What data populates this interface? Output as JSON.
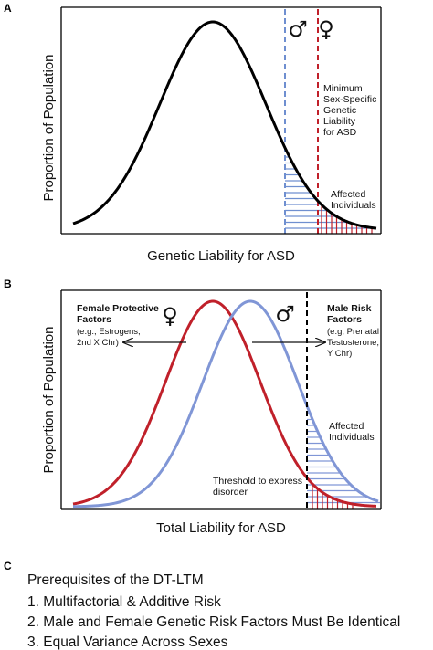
{
  "panel_a": {
    "letter": "A",
    "ylabel": "Proportion of Population",
    "xlabel": "Genetic Liability for ASD",
    "male_symbol": "♂",
    "female_symbol": "♀",
    "threshold_label": [
      "Minimum",
      "Sex-Specific",
      "Genetic",
      "Liability",
      "for ASD"
    ],
    "affected_label": [
      "Affected",
      "Individuals"
    ],
    "colors": {
      "curve": "#000000",
      "male": "#6f8fd0",
      "female": "#c0202a"
    }
  },
  "panel_b": {
    "letter": "B",
    "ylabel": "Proportion of Population",
    "xlabel": "Total Liability for ASD",
    "female_symbol": "♀",
    "male_symbol": "♂",
    "female_factors_title": [
      "Female Protective",
      "Factors"
    ],
    "female_factors_detail": [
      "(e.g., Estrogens,",
      "2nd X Chr)"
    ],
    "male_factors_title": [
      "Male Risk",
      "Factors"
    ],
    "male_factors_detail": [
      "(e.g, Prenatal",
      "Testosterone,",
      "Y Chr)"
    ],
    "affected_label": [
      "Affected",
      "Individuals"
    ],
    "threshold_label": [
      "Threshold to express",
      "disorder"
    ],
    "colors": {
      "female_curve": "#c0202a",
      "male_curve": "#8096d6",
      "threshold": "#000000"
    }
  },
  "panel_c": {
    "letter": "C",
    "title": "Prerequisites of the DT-LTM",
    "items": [
      "1. Multifactorial & Additive Risk",
      "2. Male and Female Genetic Risk Factors Must Be Identical",
      "3. Equal Variance Across Sexes"
    ]
  }
}
